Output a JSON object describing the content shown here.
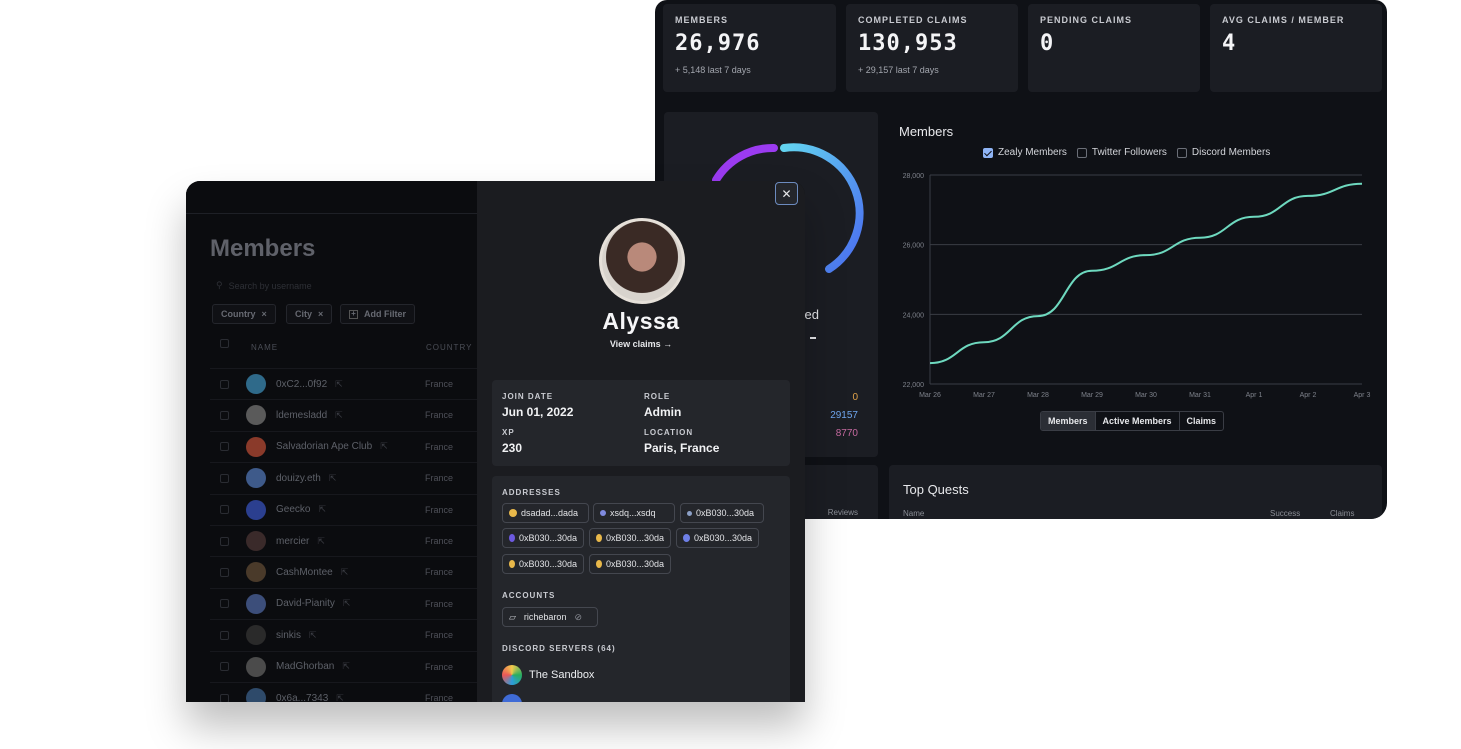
{
  "dashboard": {
    "stats": [
      {
        "label": "MEMBERS",
        "value": "26,976",
        "sub": "+ 5,148 last 7 days"
      },
      {
        "label": "COMPLETED CLAIMS",
        "value": "130,953",
        "sub": "+ 29,157 last 7 days"
      },
      {
        "label": "PENDING CLAIMS",
        "value": "0",
        "sub": ""
      },
      {
        "label": "AVG CLAIMS / MEMBER",
        "value": "4",
        "sub": ""
      }
    ],
    "donut": {
      "label_partial": "ved",
      "values": [
        "0",
        "29157",
        "8770"
      ],
      "value_colors": [
        "#e0a24a",
        "#6fa6ef",
        "#c66aa0"
      ]
    },
    "chart_tabs": [
      "Members",
      "Active Members",
      "Claims"
    ],
    "chart_tab_active": "Members",
    "bottom_left_col": "Reviews",
    "top_quests": {
      "title": "Top Quests",
      "columns": [
        "Name",
        "Success",
        "Claims"
      ]
    }
  },
  "chart_data": {
    "type": "line",
    "title": "Members",
    "legend": [
      {
        "name": "Zealy Members",
        "checked": true
      },
      {
        "name": "Twitter Followers",
        "checked": false
      },
      {
        "name": "Discord Members",
        "checked": false
      }
    ],
    "categories": [
      "Mar 26",
      "Mar 27",
      "Mar 28",
      "Mar 29",
      "Mar 30",
      "Mar 31",
      "Apr 1",
      "Apr 2",
      "Apr 3"
    ],
    "y_ticks": [
      "22,000",
      "24,000",
      "26,000",
      "28,000"
    ],
    "ylim": [
      22000,
      28000
    ],
    "series": [
      {
        "name": "Zealy Members",
        "color": "#6ed9bf",
        "values": [
          22600,
          23200,
          23950,
          25250,
          25700,
          26200,
          26800,
          27400,
          27750
        ]
      }
    ]
  },
  "members": {
    "title": "Members",
    "search_placeholder": "Search by username",
    "filters": [
      "Country",
      "City"
    ],
    "add_filter": "Add Filter",
    "col_name": "NAME",
    "col_country": "COUNTRY",
    "rows": [
      {
        "name": "0xC2...0f92",
        "country": "France"
      },
      {
        "name": "ldemesladd",
        "country": "France"
      },
      {
        "name": "Salvadorian Ape Club",
        "country": "France"
      },
      {
        "name": "douizy.eth",
        "country": "France"
      },
      {
        "name": "Geecko",
        "country": "France"
      },
      {
        "name": "mercier",
        "country": "France"
      },
      {
        "name": "CashMontee",
        "country": "France"
      },
      {
        "name": "David-Pianity",
        "country": "France"
      },
      {
        "name": "sinkis",
        "country": "France"
      },
      {
        "name": "MadGhorban",
        "country": "France"
      },
      {
        "name": "0x6a...7343",
        "country": "France"
      }
    ]
  },
  "profile": {
    "name": "Alyssa",
    "view_claims": "View claims →",
    "join_label": "JOIN DATE",
    "join_value": "Jun 01, 2022",
    "role_label": "ROLE",
    "role_value": "Admin",
    "xp_label": "XP",
    "xp_value": "230",
    "loc_label": "LOCATION",
    "loc_value": "Paris, France",
    "addresses_label": "ADDRESSES",
    "addresses": [
      "dsadad...dada",
      "xsdq...xsdq",
      "0xB030...30da",
      "0xB030...30da",
      "0xB030...30da",
      "0xB030...30da",
      "0xB030...30da",
      "0xB030...30da"
    ],
    "accounts_label": "ACCOUNTS",
    "account": "richebaron",
    "discord_label": "DISCORD SERVERS (64)",
    "servers": [
      "The Sandbox"
    ]
  }
}
